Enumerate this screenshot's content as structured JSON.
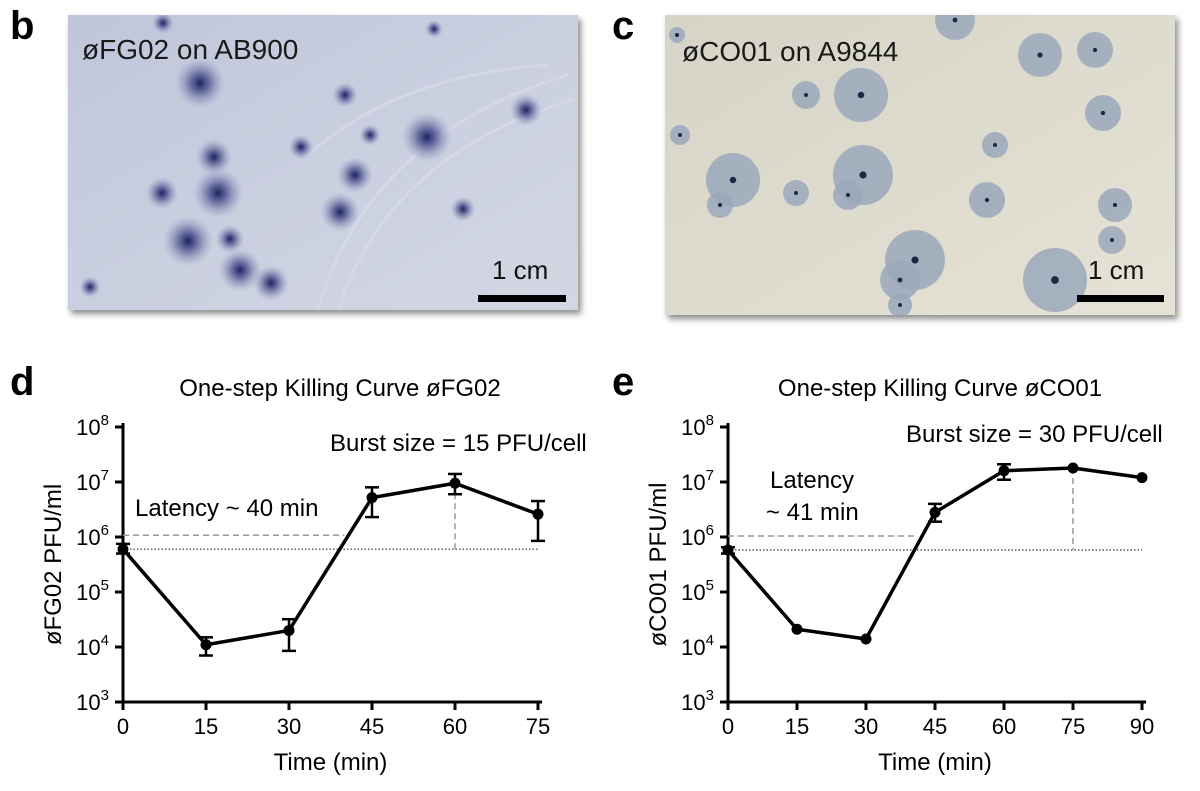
{
  "panels": {
    "b": {
      "letter": "b",
      "label": "øFG02 on AB900",
      "scale_label": "1 cm",
      "colors": {
        "plate": "#c5cbdc",
        "plaque": "#2a2f6a"
      }
    },
    "c": {
      "letter": "c",
      "label": "øCO01 on A9844",
      "scale_label": "1 cm",
      "colors": {
        "plate": "#dcd9cc",
        "halo": "#9aa8bb",
        "plaque": "#1d2746"
      }
    },
    "d": {
      "letter": "d",
      "title": "One-step Killing Curve øFG02",
      "burst": "Burst size = 15 PFU/cell",
      "latency_line1": "Latency ~ 40 min",
      "latency_line2": ""
    },
    "e": {
      "letter": "e",
      "title": "One-step Killing Curve øCO01",
      "burst": "Burst size = 30 PFU/cell",
      "latency_line1": "Latency",
      "latency_line2": "~ 41 min"
    }
  },
  "chart_data": [
    {
      "type": "line",
      "title": "One-step Killing Curve øFG02",
      "xlabel": "Time (min)",
      "ylabel": "øFG02 PFU/ml",
      "xlim": [
        0,
        75
      ],
      "ylim": [
        1000,
        100000000
      ],
      "yscale": "log",
      "xticks": [
        "0",
        "15",
        "30",
        "45",
        "60",
        "75"
      ],
      "yticks": [
        1000,
        10000,
        100000,
        1000000,
        10000000,
        100000000
      ],
      "x": [
        0,
        15,
        30,
        45,
        60,
        75
      ],
      "y": [
        600000,
        11000,
        20000,
        5200000,
        9500000,
        2600000
      ],
      "err_low": [
        500000,
        7000,
        8500,
        2300000,
        6000000,
        850000
      ],
      "err_high": [
        750000,
        15000,
        32000,
        8000000,
        14000000,
        4500000
      ],
      "baseline": 600000,
      "latency_min": 40,
      "burst_x": 60
    },
    {
      "type": "line",
      "title": "One-step Killing Curve øCO01",
      "xlabel": "Time (min)",
      "ylabel": "øCO01 PFU/ml",
      "xlim": [
        0,
        90
      ],
      "ylim": [
        1000,
        100000000
      ],
      "yscale": "log",
      "xticks": [
        "0",
        "15",
        "30",
        "45",
        "60",
        "75",
        "90"
      ],
      "yticks": [
        1000,
        10000,
        100000,
        1000000,
        10000000,
        100000000
      ],
      "x": [
        0,
        15,
        30,
        45,
        60,
        75,
        90
      ],
      "y": [
        580000,
        21000,
        14000,
        2800000,
        16000000,
        18000000,
        12000000
      ],
      "err_low": [
        500000,
        20000,
        13000,
        1900000,
        11000000,
        17000000,
        11500000
      ],
      "err_high": [
        650000,
        22000,
        15000,
        4000000,
        21000000,
        19000000,
        12500000
      ],
      "baseline": 580000,
      "latency_min": 41,
      "burst_x": 75
    }
  ]
}
